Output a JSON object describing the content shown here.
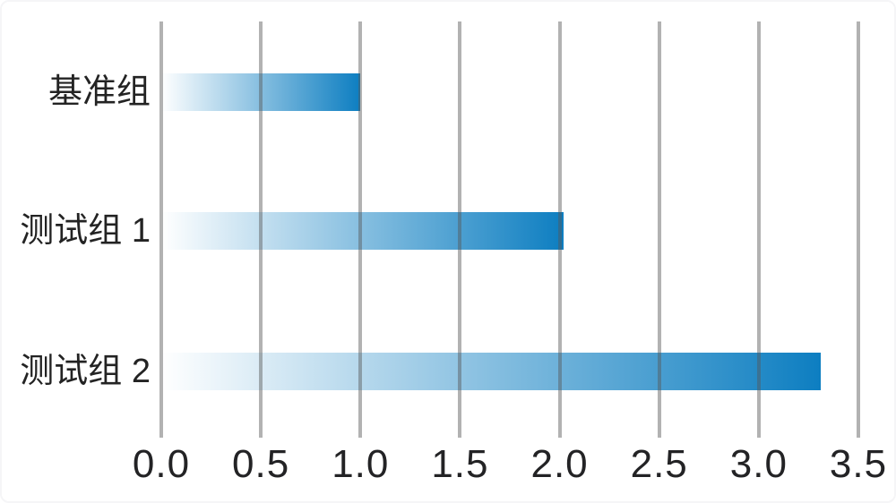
{
  "chart_data": {
    "type": "bar",
    "orientation": "horizontal",
    "title": "",
    "xlabel": "",
    "ylabel": "",
    "categories": [
      "基准组",
      "测试组 1",
      "测试组 2"
    ],
    "values": [
      1.0,
      2.02,
      3.31
    ],
    "xlim": [
      0,
      3.5
    ],
    "xticks": [
      0.0,
      0.5,
      1.0,
      1.5,
      2.0,
      2.5,
      3.0,
      3.5
    ],
    "xtick_labels": [
      "0.0",
      "0.5",
      "1.0",
      "1.5",
      "2.0",
      "2.5",
      "3.0",
      "3.5"
    ],
    "grid": "vertical-gridlines-over-bars",
    "legend": "none",
    "colors": {
      "bar_gradient_start": "#ffffff",
      "bar_gradient_end": "#0d7ec1",
      "gridline": "#a9a9a9",
      "text": "#232323",
      "background": "#ffffff"
    }
  }
}
